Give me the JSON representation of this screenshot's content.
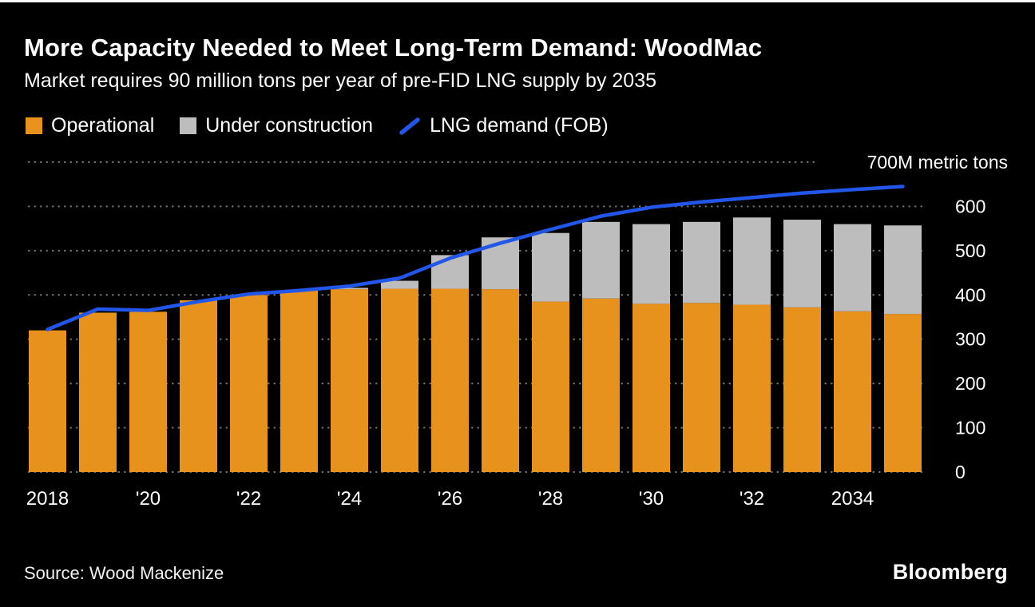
{
  "header": {
    "title": "More Capacity Needed to Meet Long-Term Demand: WoodMac",
    "subtitle": "Market requires 90 million tons per year of pre-FID LNG supply by 2035"
  },
  "legend": [
    {
      "label": "Operational",
      "color": "#E8921E",
      "type": "square"
    },
    {
      "label": "Under construction",
      "color": "#BDBDBD",
      "type": "square"
    },
    {
      "label": "LNG demand (FOB)",
      "color": "#2156E8",
      "type": "line"
    }
  ],
  "chart_data": {
    "type": "bar",
    "subtype": "stacked bars with line overlay",
    "categories": [
      2018,
      2019,
      2020,
      2021,
      2022,
      2023,
      2024,
      2025,
      2026,
      2027,
      2028,
      2029,
      2030,
      2031,
      2032,
      2033,
      2034,
      2035
    ],
    "series": [
      {
        "name": "Operational",
        "type": "bar",
        "color": "#E8921E",
        "values": [
          320,
          360,
          362,
          388,
          400,
          410,
          413,
          414,
          414,
          413,
          385,
          392,
          380,
          382,
          378,
          372,
          363,
          357
        ]
      },
      {
        "name": "Under construction",
        "type": "bar",
        "stacked_on": "Operational",
        "color": "#BDBDBD",
        "values": [
          0,
          0,
          0,
          0,
          0,
          0,
          3,
          18,
          76,
          117,
          155,
          173,
          180,
          183,
          197,
          198,
          197,
          200
        ]
      },
      {
        "name": "LNG demand (FOB)",
        "type": "line",
        "color": "#2156E8",
        "values": [
          322,
          368,
          365,
          385,
          402,
          410,
          420,
          438,
          483,
          517,
          548,
          578,
          598,
          610,
          620,
          630,
          638,
          645
        ]
      }
    ],
    "title": "More Capacity Needed to Meet Long-Term Demand: WoodMac",
    "xlabel": "",
    "ylabel": "",
    "ylim": [
      0,
      700
    ],
    "yticks": [
      0,
      100,
      200,
      300,
      400,
      500,
      600
    ],
    "top_axis_label": "700M metric tons",
    "xtick_labels": [
      {
        "index": 0,
        "label": "2018"
      },
      {
        "index": 2,
        "label": "'20"
      },
      {
        "index": 4,
        "label": "'22"
      },
      {
        "index": 6,
        "label": "'24"
      },
      {
        "index": 8,
        "label": "'26"
      },
      {
        "index": 10,
        "label": "'28"
      },
      {
        "index": 12,
        "label": "'30"
      },
      {
        "index": 14,
        "label": "'32"
      },
      {
        "index": 16,
        "label": "2034"
      }
    ],
    "grid": "horizontal dotted",
    "legend_position": "top",
    "y_axis_side": "right"
  },
  "footer": {
    "source": "Source: Wood Mackenize",
    "brand": "Bloomberg"
  }
}
